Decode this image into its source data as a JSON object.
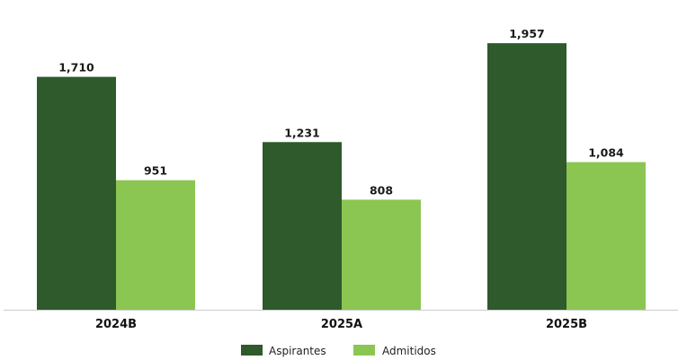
{
  "chart_data": {
    "type": "bar",
    "title": "",
    "xlabel": "",
    "ylabel": "",
    "categories": [
      "2024B",
      "2025A",
      "2025B"
    ],
    "series": [
      {
        "name": "Aspirantes",
        "color": "#2e5a2c",
        "values": [
          1710,
          1231,
          1957
        ]
      },
      {
        "name": "Admitidos",
        "color": "#8bc653",
        "values": [
          951,
          808,
          1084
        ]
      }
    ],
    "value_labels": [
      [
        "1,710",
        "1,231",
        "1,957"
      ],
      [
        "951",
        "808",
        "1,084"
      ]
    ],
    "ylim": [
      0,
      2000
    ],
    "grid": false,
    "legend_position": "bottom-center",
    "axis_color": "#cccccc"
  }
}
